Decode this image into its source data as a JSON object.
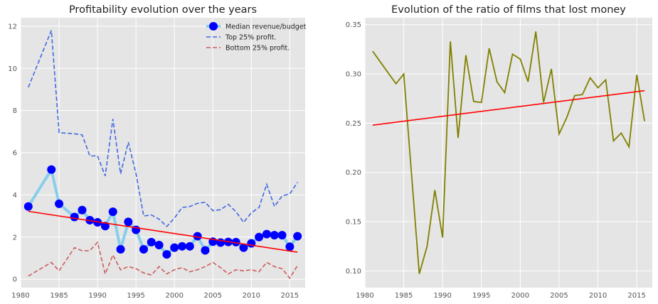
{
  "chart_data": [
    {
      "type": "line",
      "title": "Profitability evolution over the years",
      "xlim": [
        1980,
        2017
      ],
      "ylim": [
        -0.4,
        12.4
      ],
      "xticks": [
        1980,
        1985,
        1990,
        1995,
        2000,
        2005,
        2010,
        2015
      ],
      "yticks": [
        0,
        2,
        4,
        6,
        8,
        10,
        12
      ],
      "grid": true,
      "legend_position": "top-right",
      "series": [
        {
          "name": "Median revenue/budget",
          "style": "line-with-markers",
          "line_color": "#87ceeb",
          "marker_color": "#0000ff",
          "x": [
            1981,
            1984,
            1985,
            1987,
            1988,
            1989,
            1990,
            1991,
            1992,
            1993,
            1994,
            1995,
            1996,
            1997,
            1998,
            1999,
            2000,
            2001,
            2002,
            2003,
            2004,
            2005,
            2006,
            2007,
            2008,
            2009,
            2010,
            2011,
            2012,
            2013,
            2014,
            2015,
            2016
          ],
          "y": [
            3.45,
            5.2,
            3.58,
            2.95,
            3.28,
            2.8,
            2.7,
            2.52,
            3.2,
            1.42,
            2.72,
            2.34,
            1.42,
            1.76,
            1.62,
            1.18,
            1.5,
            1.56,
            1.56,
            2.04,
            1.37,
            1.78,
            1.74,
            1.77,
            1.76,
            1.5,
            1.7,
            2.0,
            2.14,
            2.09,
            2.09,
            1.54,
            2.04
          ]
        },
        {
          "name": "Top 25% profit.",
          "style": "dashed",
          "color": "#4169e1",
          "x": [
            1981,
            1984,
            1985,
            1987,
            1988,
            1989,
            1990,
            1991,
            1992,
            1993,
            1994,
            1995,
            1996,
            1997,
            1998,
            1999,
            2000,
            2001,
            2002,
            2003,
            2004,
            2005,
            2006,
            2007,
            2008,
            2009,
            2010,
            2011,
            2012,
            2013,
            2014,
            2015,
            2016
          ],
          "y": [
            9.1,
            11.8,
            6.95,
            6.9,
            6.85,
            5.85,
            5.85,
            4.9,
            7.6,
            5.0,
            6.5,
            5.0,
            3.0,
            3.05,
            2.85,
            2.5,
            2.9,
            3.4,
            3.45,
            3.6,
            3.65,
            3.25,
            3.3,
            3.55,
            3.2,
            2.7,
            3.15,
            3.4,
            4.5,
            3.45,
            3.95,
            4.05,
            4.6
          ]
        },
        {
          "name": "Bottom 25% profit.",
          "style": "dashed",
          "color": "#cd5c5c",
          "x": [
            1981,
            1984,
            1985,
            1987,
            1988,
            1989,
            1990,
            1991,
            1992,
            1993,
            1994,
            1995,
            1996,
            1997,
            1998,
            1999,
            2000,
            2001,
            2002,
            2003,
            2004,
            2005,
            2006,
            2007,
            2008,
            2009,
            2010,
            2011,
            2012,
            2013,
            2014,
            2015,
            2016
          ],
          "y": [
            0.15,
            0.8,
            0.4,
            1.5,
            1.35,
            1.35,
            1.75,
            0.25,
            1.15,
            0.45,
            0.6,
            0.5,
            0.3,
            0.2,
            0.6,
            0.25,
            0.45,
            0.55,
            0.35,
            0.45,
            0.6,
            0.8,
            0.55,
            0.25,
            0.45,
            0.4,
            0.45,
            0.35,
            0.8,
            0.6,
            0.5,
            0.05,
            0.65
          ]
        },
        {
          "style": "trend",
          "color": "#ff0000",
          "x": [
            1981,
            2016
          ],
          "y": [
            3.22,
            1.28
          ]
        }
      ]
    },
    {
      "type": "line",
      "title": "Evolution of the ratio of films that lost money",
      "xlim": [
        1980,
        2017
      ],
      "ylim": [
        0.083,
        0.357
      ],
      "xticks": [
        1980,
        1985,
        1990,
        1995,
        2000,
        2005,
        2010,
        2015
      ],
      "yticks": [
        0.1,
        0.15,
        0.2,
        0.25,
        0.3,
        0.35
      ],
      "ytick_labels": [
        "0.10",
        "0.15",
        "0.20",
        "0.25",
        "0.30",
        "0.35"
      ],
      "grid": true,
      "series": [
        {
          "style": "solid",
          "color": "#808000",
          "x": [
            1981,
            1984,
            1985,
            1987,
            1988,
            1989,
            1990,
            1991,
            1992,
            1993,
            1994,
            1995,
            1996,
            1997,
            1998,
            1999,
            2000,
            2001,
            2002,
            2003,
            2004,
            2005,
            2006,
            2007,
            2008,
            2009,
            2010,
            2011,
            2012,
            2013,
            2014,
            2015,
            2016
          ],
          "y": [
            0.323,
            0.29,
            0.3,
            0.097,
            0.125,
            0.182,
            0.134,
            0.333,
            0.235,
            0.319,
            0.272,
            0.271,
            0.326,
            0.292,
            0.281,
            0.32,
            0.315,
            0.292,
            0.343,
            0.271,
            0.305,
            0.239,
            0.256,
            0.278,
            0.279,
            0.296,
            0.286,
            0.294,
            0.232,
            0.24,
            0.226,
            0.299,
            0.252
          ]
        },
        {
          "style": "trend",
          "color": "#ff0000",
          "x": [
            1981,
            2016
          ],
          "y": [
            0.248,
            0.283
          ]
        }
      ]
    }
  ]
}
